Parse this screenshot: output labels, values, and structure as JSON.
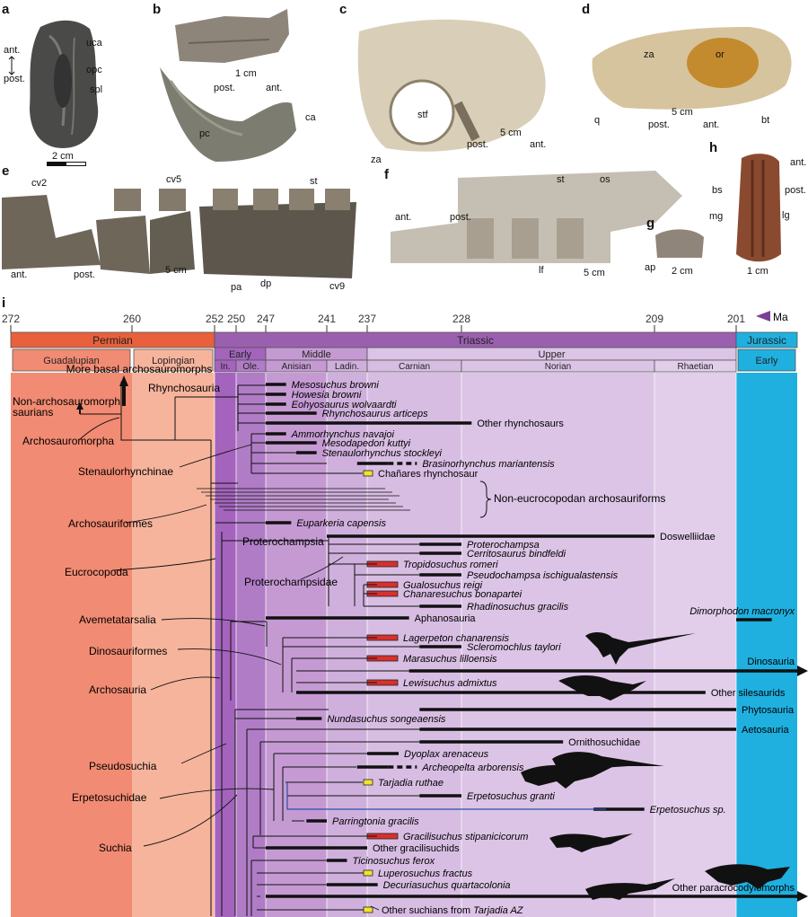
{
  "panels": {
    "a": {
      "label": "a",
      "notes": [
        "uca",
        "opc",
        "spl",
        "ant.",
        "post."
      ],
      "scale": "2 cm"
    },
    "b": {
      "label": "b",
      "notes": [
        "pc",
        "ca",
        "post.",
        "ant."
      ],
      "scale": "1 cm"
    },
    "c": {
      "label": "c",
      "notes": [
        "stf",
        "za",
        "post.",
        "ant."
      ],
      "scale": "5 cm"
    },
    "d": {
      "label": "d",
      "notes": [
        "za",
        "or",
        "q",
        "bt",
        "post.",
        "ant."
      ],
      "scale": "5 cm"
    },
    "e": {
      "label": "e",
      "notes": [
        "cv2",
        "cv5",
        "st",
        "pa",
        "dp",
        "cv9",
        "ant.",
        "post."
      ],
      "scale": "5 cm"
    },
    "f": {
      "label": "f",
      "notes": [
        "st",
        "os",
        "lf",
        "ant.",
        "post."
      ],
      "scale": "5 cm"
    },
    "g": {
      "label": "g",
      "notes": [
        "ap"
      ],
      "scale": "2 cm"
    },
    "h": {
      "label": "h",
      "notes": [
        "bs",
        "mg",
        "lg",
        "ant.",
        "post."
      ],
      "scale": "1 cm"
    }
  },
  "chart_data": {
    "type": "timescaled-phylogeny",
    "panel_label": "i",
    "unit_label": "Ma",
    "time_ticks": [
      "272",
      "260",
      "252",
      "250",
      "247",
      "241",
      "237",
      "228",
      "209",
      "201"
    ],
    "periods": [
      {
        "name": "Permian",
        "start": 272,
        "end": 252,
        "color": "#e8603c"
      },
      {
        "name": "Triassic",
        "start": 252,
        "end": 201,
        "color": "#9b5fb0"
      },
      {
        "name": "Jurassic",
        "start": 201,
        "end": 195,
        "color": "#1fb0e0"
      }
    ],
    "epochs": [
      {
        "name": "Guadalupian",
        "start": 272,
        "end": 260
      },
      {
        "name": "Lopingian",
        "start": 260,
        "end": 252
      },
      {
        "name": "Early",
        "start": 252,
        "end": 247
      },
      {
        "name": "Middle",
        "start": 247,
        "end": 237
      },
      {
        "name": "Upper",
        "start": 237,
        "end": 201
      },
      {
        "name": "Early",
        "start": 201,
        "end": 195
      }
    ],
    "stages": [
      {
        "name": "In.",
        "start": 252,
        "end": 250
      },
      {
        "name": "Ole.",
        "start": 250,
        "end": 247
      },
      {
        "name": "Anisian",
        "start": 247,
        "end": 241
      },
      {
        "name": "Ladin.",
        "start": 241,
        "end": 237
      },
      {
        "name": "Carnian",
        "start": 237,
        "end": 228
      },
      {
        "name": "Norian",
        "start": 228,
        "end": 209
      },
      {
        "name": "Rhaetian",
        "start": 209,
        "end": 201
      }
    ],
    "taxa": [
      {
        "name": "Mesosuchus browni",
        "start": 247,
        "end": 245,
        "italic": true,
        "marker": "none"
      },
      {
        "name": "Howesia browni",
        "start": 247,
        "end": 245,
        "italic": true,
        "marker": "none"
      },
      {
        "name": "Eohyosaurus wolvaardti",
        "start": 247,
        "end": 245,
        "italic": true,
        "marker": "none"
      },
      {
        "name": "Rhynchosaurus articeps",
        "start": 247,
        "end": 242,
        "italic": true,
        "marker": "none"
      },
      {
        "name": "Other rhynchosaurs",
        "start": 247,
        "end": 227,
        "italic": false,
        "marker": "none"
      },
      {
        "name": "Ammorhynchus navajoi",
        "start": 247,
        "end": 245,
        "italic": true,
        "marker": "none"
      },
      {
        "name": "Mesodapedon kuttyi",
        "start": 247,
        "end": 242,
        "italic": true,
        "marker": "none"
      },
      {
        "name": "Stenaulorhynchus stockleyi",
        "start": 244,
        "end": 242,
        "italic": true,
        "marker": "none"
      },
      {
        "name": "Brasinorhynchus mariantensis",
        "start": 238,
        "end": 235,
        "italic": true,
        "marker": "dashed"
      },
      {
        "name": "Chañares rhynchosaur",
        "start": 237,
        "end": 236,
        "italic": false,
        "marker": "yellow"
      },
      {
        "name": "Non-eucrocopodan archosauriforms",
        "start": 252,
        "end": 237,
        "italic": false,
        "marker": "bracket"
      },
      {
        "name": "Euparkeria capensis",
        "start": 247,
        "end": 244.5,
        "italic": true,
        "marker": "none"
      },
      {
        "name": "Doswelliidae",
        "start": 241,
        "end": 209,
        "italic": false,
        "marker": "none"
      },
      {
        "name": "Proterochampsa",
        "start": 232,
        "end": 228,
        "italic": true,
        "marker": "none"
      },
      {
        "name": "Cerritosaurus bindfeldi",
        "start": 232,
        "end": 228,
        "italic": true,
        "marker": "none"
      },
      {
        "name": "Tropidosuchus romeri",
        "start": 237,
        "end": 235,
        "italic": true,
        "marker": "red"
      },
      {
        "name": "Pseudochampsa ischigualastensis",
        "start": 232,
        "end": 228,
        "italic": true,
        "marker": "none"
      },
      {
        "name": "Gualosuchus reigi",
        "start": 237,
        "end": 235,
        "italic": true,
        "marker": "red"
      },
      {
        "name": "Chanaresuchus bonapartei",
        "start": 237,
        "end": 235,
        "italic": true,
        "marker": "red"
      },
      {
        "name": "Rhadinosuchus gracilis",
        "start": 232,
        "end": 228,
        "italic": true,
        "marker": "none"
      },
      {
        "name": "Aphanosauria",
        "start": 247,
        "end": 233,
        "italic": false,
        "marker": "none"
      },
      {
        "name": "Dimorphodon macronyx",
        "start": 201,
        "end": 197.5,
        "italic": true,
        "marker": "none"
      },
      {
        "name": "Lagerpeton chanarensis",
        "start": 237,
        "end": 235,
        "italic": true,
        "marker": "red"
      },
      {
        "name": "Scleromochlus taylori",
        "start": 232,
        "end": 228,
        "italic": true,
        "marker": "none"
      },
      {
        "name": "Marasuchus lilloensis",
        "start": 237,
        "end": 235,
        "italic": true,
        "marker": "red"
      },
      {
        "name": "Dinosauria",
        "start": 233,
        "end": 195,
        "italic": false,
        "marker": "arrow"
      },
      {
        "name": "Lewisuchus admixtus",
        "start": 237,
        "end": 235,
        "italic": true,
        "marker": "red"
      },
      {
        "name": "Other silesaurids",
        "start": 244,
        "end": 204,
        "italic": false,
        "marker": "none"
      },
      {
        "name": "Phytosauria",
        "start": 232,
        "end": 201,
        "italic": false,
        "marker": "none"
      },
      {
        "name": "Nundasuchus songeaensis",
        "start": 244,
        "end": 241.5,
        "italic": true,
        "marker": "none"
      },
      {
        "name": "Aetosauria",
        "start": 232,
        "end": 201,
        "italic": false,
        "marker": "none"
      },
      {
        "name": "Ornithosuchidae",
        "start": 232,
        "end": 218,
        "italic": false,
        "marker": "none"
      },
      {
        "name": "Dyoplax arenaceus",
        "start": 237,
        "end": 234,
        "italic": true,
        "marker": "none"
      },
      {
        "name": "Archeopelta arborensis",
        "start": 238,
        "end": 235,
        "italic": true,
        "marker": "dashed"
      },
      {
        "name": "Tarjadia ruthae",
        "start": 237,
        "end": 236,
        "italic": true,
        "marker": "yellow"
      },
      {
        "name": "Erpetosuchus granti",
        "start": 232,
        "end": 228,
        "italic": true,
        "marker": "none"
      },
      {
        "name": "Erpetosuchus sp.",
        "start": 215,
        "end": 210,
        "italic": true,
        "marker": "none"
      },
      {
        "name": "Parringtonia gracilis",
        "start": 243,
        "end": 241,
        "italic": true,
        "marker": "none"
      },
      {
        "name": "Gracilisuchus stipanicicorum",
        "start": 237,
        "end": 235,
        "italic": true,
        "marker": "red"
      },
      {
        "name": "Other gracilisuchids",
        "start": 247,
        "end": 237,
        "italic": false,
        "marker": "none"
      },
      {
        "name": "Ticinosuchus ferox",
        "start": 241,
        "end": 239,
        "italic": true,
        "marker": "none"
      },
      {
        "name": "Luperosuchus fractus",
        "start": 237,
        "end": 236,
        "italic": true,
        "marker": "yellow"
      },
      {
        "name": "Decuriasuchus quartacolonia",
        "start": 241,
        "end": 236,
        "italic": true,
        "marker": "none"
      },
      {
        "name": "Other paracrocodylomorphs",
        "start": 247,
        "end": 195,
        "italic": false,
        "marker": "arrow"
      },
      {
        "name": "Other suchians from Tarjadia AZ",
        "start": 237,
        "end": 236,
        "italic": false,
        "marker": "yellow"
      }
    ],
    "clade_labels": [
      "More basal archosauromorphs",
      "Rhynchosauria",
      "Non-archosauromorph",
      "saurians",
      "Archosauromorpha",
      "Stenaulorhynchinae",
      "Archosauriformes",
      "Eucrocopoda",
      "Proterochampsia",
      "Proterochampsidae",
      "Avemetatarsalia",
      "Dinosauriformes",
      "Archosauria",
      "Pseudosuchia",
      "Erpetosuchidae",
      "Suchia"
    ],
    "italic_fragment": "Tarjadia AZ"
  }
}
